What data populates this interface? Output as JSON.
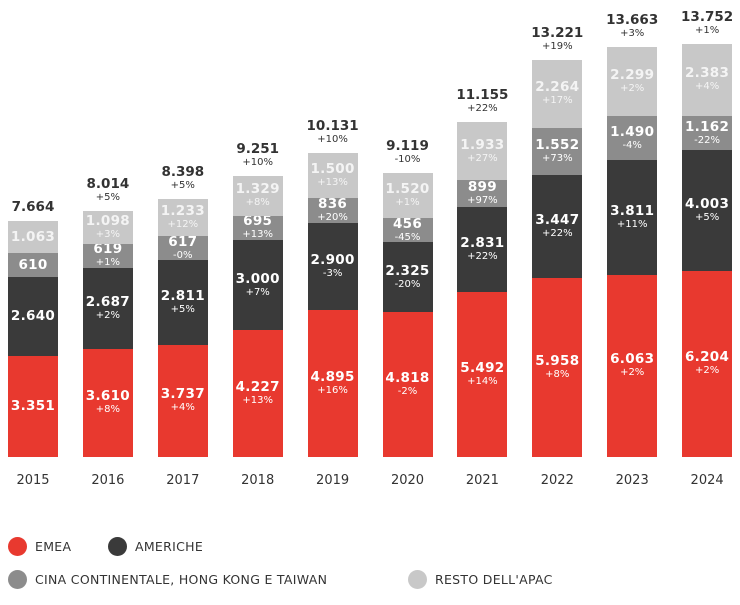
{
  "chart_data": {
    "type": "bar",
    "stacked": true,
    "categories": [
      "2015",
      "2016",
      "2017",
      "2018",
      "2019",
      "2020",
      "2021",
      "2022",
      "2023",
      "2024"
    ],
    "series": [
      {
        "name": "EMEA",
        "color": "#e8392f",
        "values": [
          3351,
          3610,
          3737,
          4227,
          4895,
          4818,
          5492,
          5958,
          6063,
          6204
        ],
        "labels": [
          "3.351",
          "3.610",
          "3.737",
          "4.227",
          "4.895",
          "4.818",
          "5.492",
          "5.958",
          "6.063",
          "6.204"
        ],
        "growth": [
          "",
          "+8%",
          "+4%",
          "+13%",
          "+16%",
          "-2%",
          "+14%",
          "+8%",
          "+2%",
          "+2%"
        ]
      },
      {
        "name": "AMERICHE",
        "color": "#3a3a3a",
        "values": [
          2640,
          2687,
          2811,
          3000,
          2900,
          2325,
          2831,
          3447,
          3811,
          4003
        ],
        "labels": [
          "2.640",
          "2.687",
          "2.811",
          "3.000",
          "2.900",
          "2.325",
          "2.831",
          "3.447",
          "3.811",
          "4.003"
        ],
        "growth": [
          "",
          "+2%",
          "+5%",
          "+7%",
          "-3%",
          "-20%",
          "+22%",
          "+22%",
          "+11%",
          "+5%"
        ]
      },
      {
        "name": "CINA CONTINENTALE, HONG KONG E TAIWAN",
        "color": "#8c8c8c",
        "values": [
          610,
          619,
          617,
          695,
          836,
          456,
          899,
          1552,
          1490,
          1162
        ],
        "labels": [
          "610",
          "619",
          "617",
          "695",
          "836",
          "456",
          "899",
          "1.552",
          "1.490",
          "1.162"
        ],
        "growth": [
          "",
          "+1%",
          "-0%",
          "+13%",
          "+20%",
          "-45%",
          "+97%",
          "+73%",
          "-4%",
          "-22%"
        ]
      },
      {
        "name": "RESTO DELL'APAC",
        "color": "#c8c8c8",
        "values": [
          1063,
          1098,
          1233,
          1329,
          1500,
          1520,
          1933,
          2264,
          2299,
          2383
        ],
        "labels": [
          "1.063",
          "1.098",
          "1.233",
          "1.329",
          "1.500",
          "1.520",
          "1.933",
          "2.264",
          "2.299",
          "2.383"
        ],
        "growth": [
          "",
          "+3%",
          "+12%",
          "+8%",
          "+13%",
          "+1%",
          "+27%",
          "+17%",
          "+2%",
          "+4%"
        ]
      }
    ],
    "totals": {
      "values": [
        7664,
        8014,
        8398,
        9251,
        10131,
        9119,
        11155,
        13221,
        13663,
        13752
      ],
      "labels": [
        "7.664",
        "8.014",
        "8.398",
        "9.251",
        "10.131",
        "9.119",
        "11.155",
        "13.221",
        "13.663",
        "13.752"
      ],
      "growth": [
        "",
        "+5%",
        "+5%",
        "+10%",
        "+10%",
        "-10%",
        "+22%",
        "+19%",
        "+3%",
        "+1%"
      ]
    },
    "legend_placement": "bottom",
    "grid": false,
    "ylim": [
      0,
      14000
    ]
  }
}
